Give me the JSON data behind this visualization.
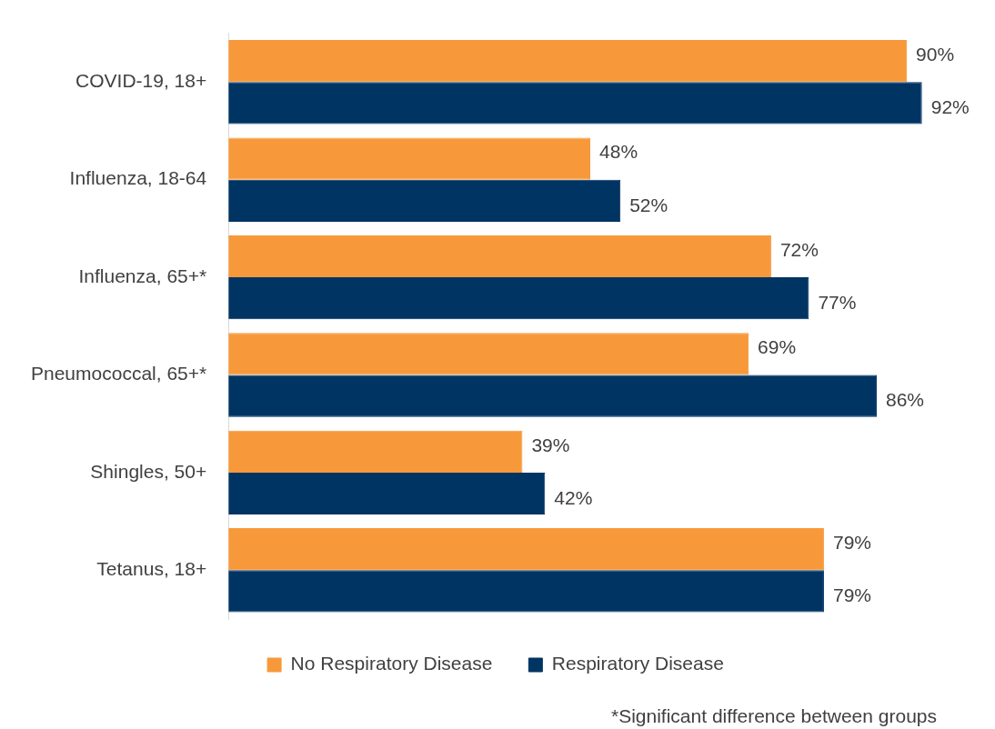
{
  "chart_data": {
    "type": "bar",
    "orientation": "horizontal",
    "categories": [
      "COVID-19, 18+",
      "Influenza, 18-64",
      "Influenza, 65+*",
      "Pneumococcal, 65+*",
      "Shingles, 50+",
      "Tetanus, 18+"
    ],
    "series": [
      {
        "name": "No Respiratory Disease",
        "color": "#f7993b",
        "values": [
          90,
          48,
          72,
          69,
          39,
          79
        ],
        "value_labels": [
          "90%",
          "48%",
          "72%",
          "69%",
          "39%",
          "79%"
        ]
      },
      {
        "name": "Respiratory Disease",
        "color": "#003463",
        "values": [
          92,
          52,
          77,
          86,
          42,
          79
        ],
        "value_labels": [
          "92%",
          "52%",
          "77%",
          "86%",
          "42%",
          "79%"
        ]
      }
    ],
    "tick_labels": "y",
    "legend": "bottom",
    "annotations": [
      "*Significant difference between groups"
    ]
  }
}
